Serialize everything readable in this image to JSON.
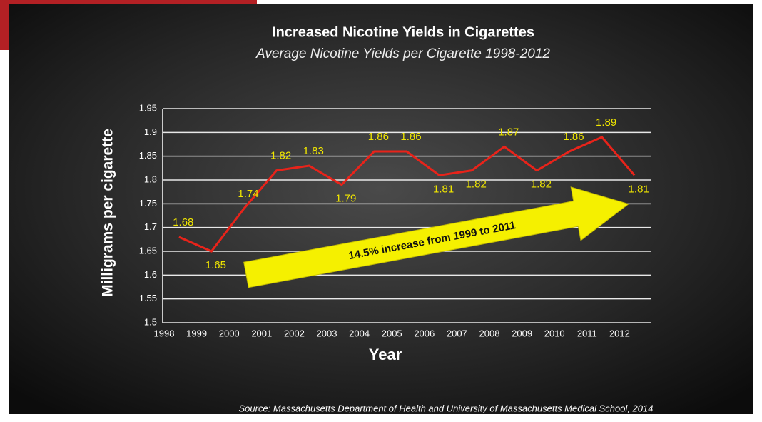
{
  "chart_data": {
    "type": "line",
    "title": "Increased Nicotine Yields in Cigarettes",
    "subtitle": "Average Nicotine Yields per Cigarette 1998-2012",
    "x_label": "Year",
    "y_label": "Milligrams per cigarette",
    "categories": [
      "1998",
      "1999",
      "2000",
      "2001",
      "2002",
      "2003",
      "2004",
      "2005",
      "2006",
      "2007",
      "2008",
      "2009",
      "2010",
      "2011",
      "2012"
    ],
    "series": [
      {
        "name": "Nicotine yield",
        "color": "#e8231a",
        "values": [
          1.68,
          1.65,
          1.74,
          1.82,
          1.83,
          1.79,
          1.86,
          1.86,
          1.81,
          1.82,
          1.87,
          1.82,
          1.86,
          1.89,
          1.81
        ]
      }
    ],
    "ylim": [
      1.5,
      1.95
    ],
    "yticks": [
      1.5,
      1.55,
      1.6,
      1.65,
      1.7,
      1.75,
      1.8,
      1.85,
      1.9,
      1.95
    ],
    "grid": true,
    "annotation": "14.5% increase from 1999 to 2011",
    "source": "Source: Massachusetts Department of Health and University of Massachusetts Medical School, 2014"
  }
}
